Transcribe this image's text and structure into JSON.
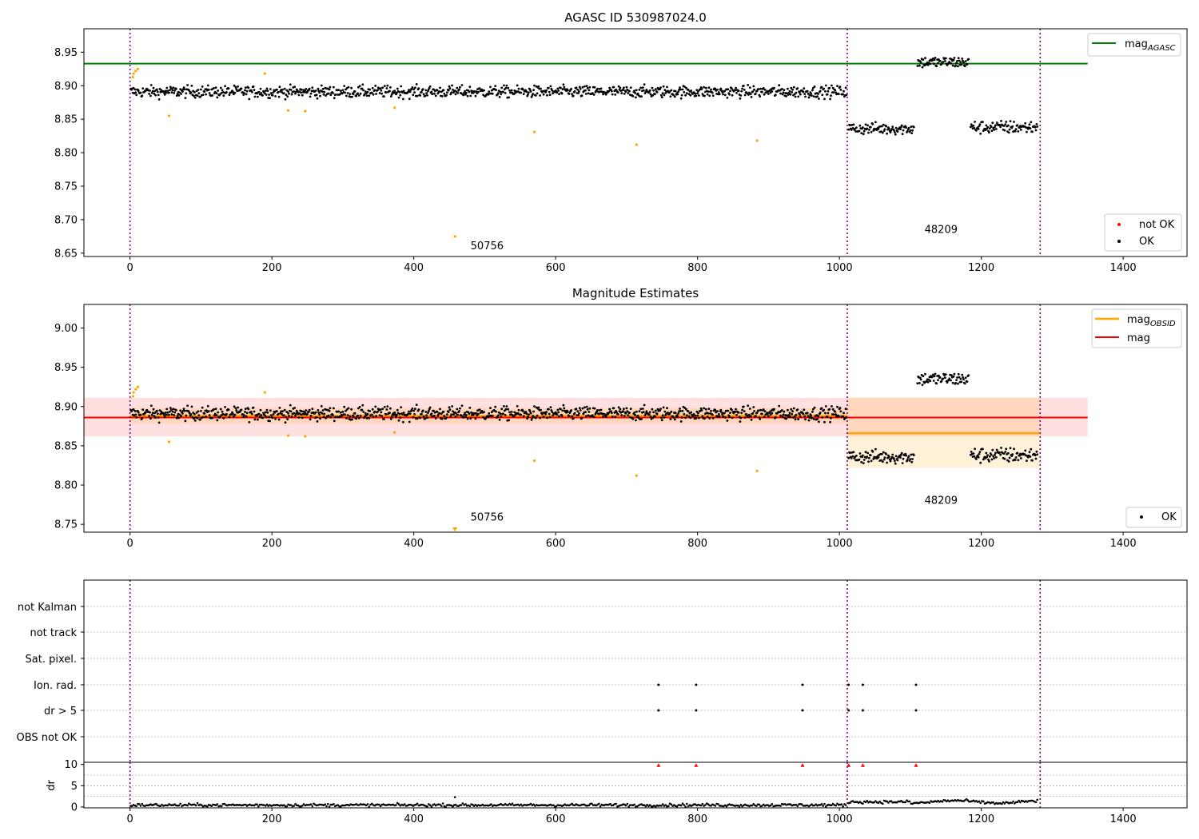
{
  "chart_data": [
    {
      "type": "scatter",
      "title": "AGASC ID 530987024.0",
      "xlim": [
        -65,
        1490
      ],
      "ylim": [
        8.645,
        8.985
      ],
      "x_ticks": [
        0,
        200,
        400,
        600,
        800,
        1000,
        1200,
        1400
      ],
      "y_ticks": [
        "8.65",
        "8.70",
        "8.75",
        "8.80",
        "8.85",
        "8.90",
        "8.95"
      ],
      "y_tick_values": [
        8.65,
        8.7,
        8.75,
        8.8,
        8.85,
        8.9,
        8.95
      ],
      "grid": false,
      "obsid_boundaries": [
        0,
        1011,
        1283
      ],
      "reference_lines": [
        {
          "name": "mag_AGASC",
          "value": 8.933,
          "x_range": [
            -65,
            1350
          ],
          "color": "#008000"
        }
      ],
      "legend_lines": [
        {
          "base": "mag",
          "sub": "AGASC",
          "color": "#008000"
        }
      ],
      "legend_points": [
        {
          "label": "not OK",
          "color": "#ff0000"
        },
        {
          "label": "OK",
          "color": "#000000"
        }
      ],
      "legend_placement": [
        "top-right",
        "bottom-right"
      ],
      "segments": [
        {
          "x_range": [
            1,
            1010
          ],
          "center": 8.891,
          "spread": 0.009
        },
        {
          "x_range": [
            1013,
            1105
          ],
          "center": 8.836,
          "spread": 0.009
        },
        {
          "x_range": [
            1110,
            1182
          ],
          "center": 8.935,
          "spread": 0.009
        },
        {
          "x_range": [
            1185,
            1279
          ],
          "center": 8.838,
          "spread": 0.01
        }
      ],
      "outliers": [
        {
          "x": 5,
          "y": 8.918
        },
        {
          "x": 8,
          "y": 8.922
        },
        {
          "x": 11,
          "y": 8.925
        },
        {
          "x": 4,
          "y": 8.913
        },
        {
          "x": 55,
          "y": 8.855
        },
        {
          "x": 190,
          "y": 8.918
        },
        {
          "x": 223,
          "y": 8.863
        },
        {
          "x": 247,
          "y": 8.862
        },
        {
          "x": 373,
          "y": 8.867
        },
        {
          "x": 458,
          "y": 8.675
        },
        {
          "x": 570,
          "y": 8.831
        },
        {
          "x": 714,
          "y": 8.812
        },
        {
          "x": 884,
          "y": 8.818
        }
      ],
      "annotations": [
        {
          "text": "50756",
          "x": 480,
          "y": 8.656
        },
        {
          "text": "48209",
          "x": 1120,
          "y": 8.68
        }
      ]
    },
    {
      "type": "scatter",
      "title": "Magnitude Estimates",
      "xlim": [
        -65,
        1490
      ],
      "ylim": [
        8.74,
        9.03
      ],
      "x_ticks": [
        0,
        200,
        400,
        600,
        800,
        1000,
        1200,
        1400
      ],
      "y_ticks": [
        "8.75",
        "8.80",
        "8.85",
        "8.90",
        "8.95",
        "9.00"
      ],
      "y_tick_values": [
        8.75,
        8.8,
        8.85,
        8.9,
        8.95,
        9.0
      ],
      "grid": false,
      "obsid_boundaries": [
        0,
        1011,
        1283
      ],
      "mag": {
        "value": 8.886,
        "band": [
          8.862,
          8.911
        ],
        "x_range": [
          -65,
          1350
        ],
        "color": "#ff0000"
      },
      "mag_obsid": [
        {
          "value": 8.888,
          "band": [
            8.878,
            8.898
          ],
          "x_range": [
            0,
            1011
          ]
        },
        {
          "value": 8.866,
          "band": [
            8.822,
            8.912
          ],
          "x_range": [
            1011,
            1283
          ]
        }
      ],
      "legend_lines": [
        {
          "base": "mag",
          "sub": "OBSID",
          "color": "#ffa500"
        },
        {
          "base": "mag",
          "sub": "",
          "color": "#ff0000"
        }
      ],
      "legend_points": [
        {
          "label": "OK",
          "color": "#000000"
        }
      ],
      "legend_placement": [
        "top-right",
        "bottom-right"
      ],
      "annotations": [
        {
          "text": "50756",
          "x": 480,
          "y": 8.755
        },
        {
          "text": "48209",
          "x": 1120,
          "y": 8.776
        }
      ]
    },
    {
      "type": "scatter",
      "title": "",
      "xlim": [
        -65,
        1490
      ],
      "flag_rows": [
        "not Kalman",
        "not track",
        "Sat. pixel.",
        "Ion. rad.",
        "dr > 5",
        "OBS not OK"
      ],
      "flagged_x": [
        745,
        798,
        948,
        1013,
        1033,
        1108
      ],
      "flagged_rows": [
        "Ion. rad.",
        "dr > 5"
      ],
      "obsid_boundaries": [
        0,
        1011,
        1283
      ],
      "dr_panel": {
        "ylabel": "dr",
        "ylim": [
          -0.2,
          10.5
        ],
        "y_ticks": [
          "0",
          "5",
          "10"
        ],
        "y_tick_values": [
          0,
          5,
          10
        ],
        "x_ticks": [
          0,
          200,
          400,
          600,
          800,
          1000,
          1200,
          1400
        ],
        "red_marker_value": 9.8,
        "segments": [
          {
            "x_range": [
              1,
              1010
            ],
            "center": 0.45,
            "spread": 0.35
          },
          {
            "x_range": [
              1013,
              1279
            ],
            "center": 1.2,
            "spread": 0.35
          }
        ],
        "outliers": [
          {
            "x": 458,
            "y": 2.3
          }
        ]
      }
    }
  ]
}
